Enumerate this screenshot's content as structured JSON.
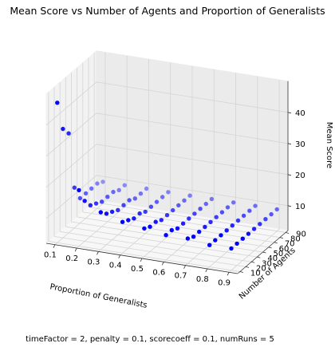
{
  "chart_data": {
    "type": "scatter",
    "projection": "3d",
    "title": "Mean Score vs Number of Agents and Proportion of Generalists",
    "xlabel": "Proportion of Generalists",
    "ylabel": "Number of Agents",
    "zlabel": "Mean Score",
    "x_ticks": [
      "0.1",
      "0.2",
      "0.3",
      "0.4",
      "0.5",
      "0.6",
      "0.7",
      "0.8",
      "0.9"
    ],
    "y_ticks": [
      "10",
      "20",
      "30",
      "40",
      "50",
      "60",
      "70",
      "80",
      "90"
    ],
    "z_ticks": [
      "10",
      "20",
      "30",
      "40"
    ],
    "xlim": [
      0.06,
      0.94
    ],
    "ylim": [
      6,
      94
    ],
    "zlim": [
      2,
      50
    ],
    "grid": true,
    "marker_color": "#0000ff",
    "x": [
      0.1,
      0.2,
      0.3,
      0.4,
      0.5,
      0.6,
      0.7,
      0.8,
      0.9
    ],
    "y": [
      10,
      20,
      30,
      40,
      50,
      60,
      70,
      80,
      90
    ],
    "series": [
      {
        "values_by_x": [
          [
            47,
            37,
            34,
            15,
            10,
            10,
            10,
            10,
            9
          ],
          [
            20,
            15,
            12,
            11,
            10,
            10,
            10,
            9,
            9
          ],
          [
            14,
            12,
            11,
            10,
            10,
            10,
            9,
            9,
            9
          ],
          [
            12,
            11,
            10,
            10,
            9,
            9,
            9,
            9,
            9
          ],
          [
            11,
            10,
            10,
            9,
            9,
            9,
            9,
            9,
            9
          ],
          [
            10,
            10,
            9,
            9,
            9,
            9,
            9,
            9,
            9
          ],
          [
            10,
            9,
            9,
            9,
            9,
            9,
            9,
            9,
            9
          ],
          [
            9,
            9,
            9,
            9,
            9,
            9,
            9,
            9,
            9
          ],
          [
            9,
            9,
            9,
            9,
            9,
            9,
            9,
            9,
            9
          ]
        ]
      }
    ]
  },
  "footer": "timeFactor = 2, penalty = 0.1, scorecoeff = 0.1, numRuns = 5"
}
